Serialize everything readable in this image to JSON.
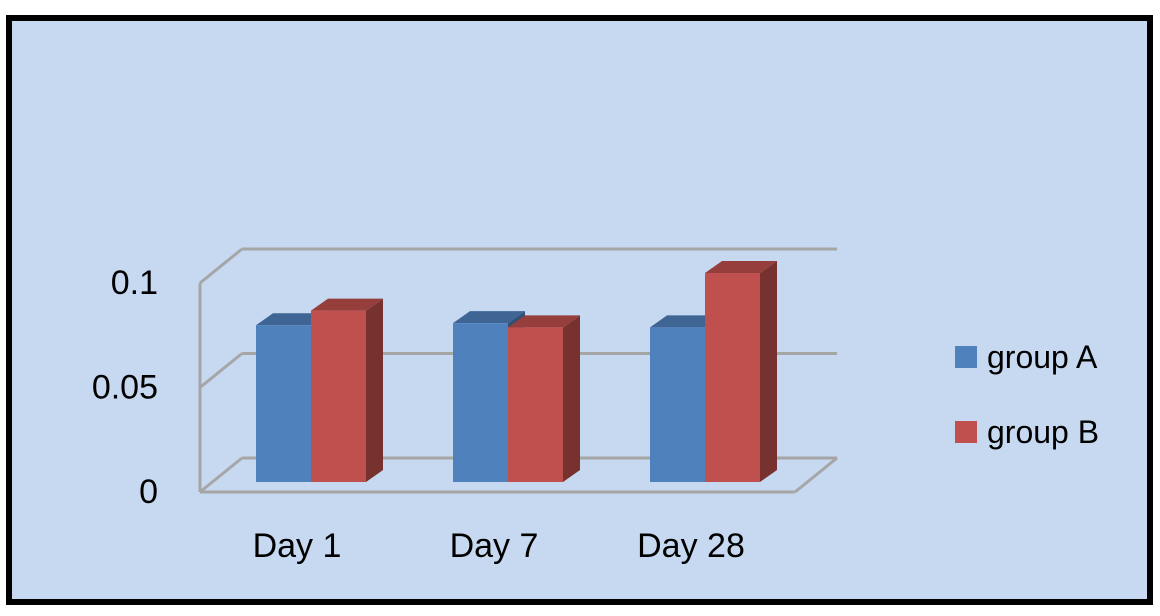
{
  "chart_data": {
    "type": "bar",
    "title": "",
    "xlabel": "",
    "ylabel": "",
    "categories": [
      "Day 1",
      "Day 7",
      "Day 28"
    ],
    "series": [
      {
        "name": "group A",
        "values": [
          0.075,
          0.076,
          0.074
        ]
      },
      {
        "name": "group B",
        "values": [
          0.082,
          0.074,
          0.1
        ]
      }
    ],
    "ylim": [
      0,
      0.1
    ],
    "yticks": [
      {
        "value": 0,
        "label": "0"
      },
      {
        "value": 0.05,
        "label": "0.05"
      },
      {
        "value": 0.1,
        "label": "0.1"
      }
    ],
    "grid": true,
    "legend_position": "right",
    "style": "3d-clustered-column"
  },
  "colors": {
    "background": "#c6d9f1",
    "border": "#000000",
    "grid": "#a6a6a6",
    "series": [
      "#4f81bd",
      "#c0504d"
    ]
  }
}
